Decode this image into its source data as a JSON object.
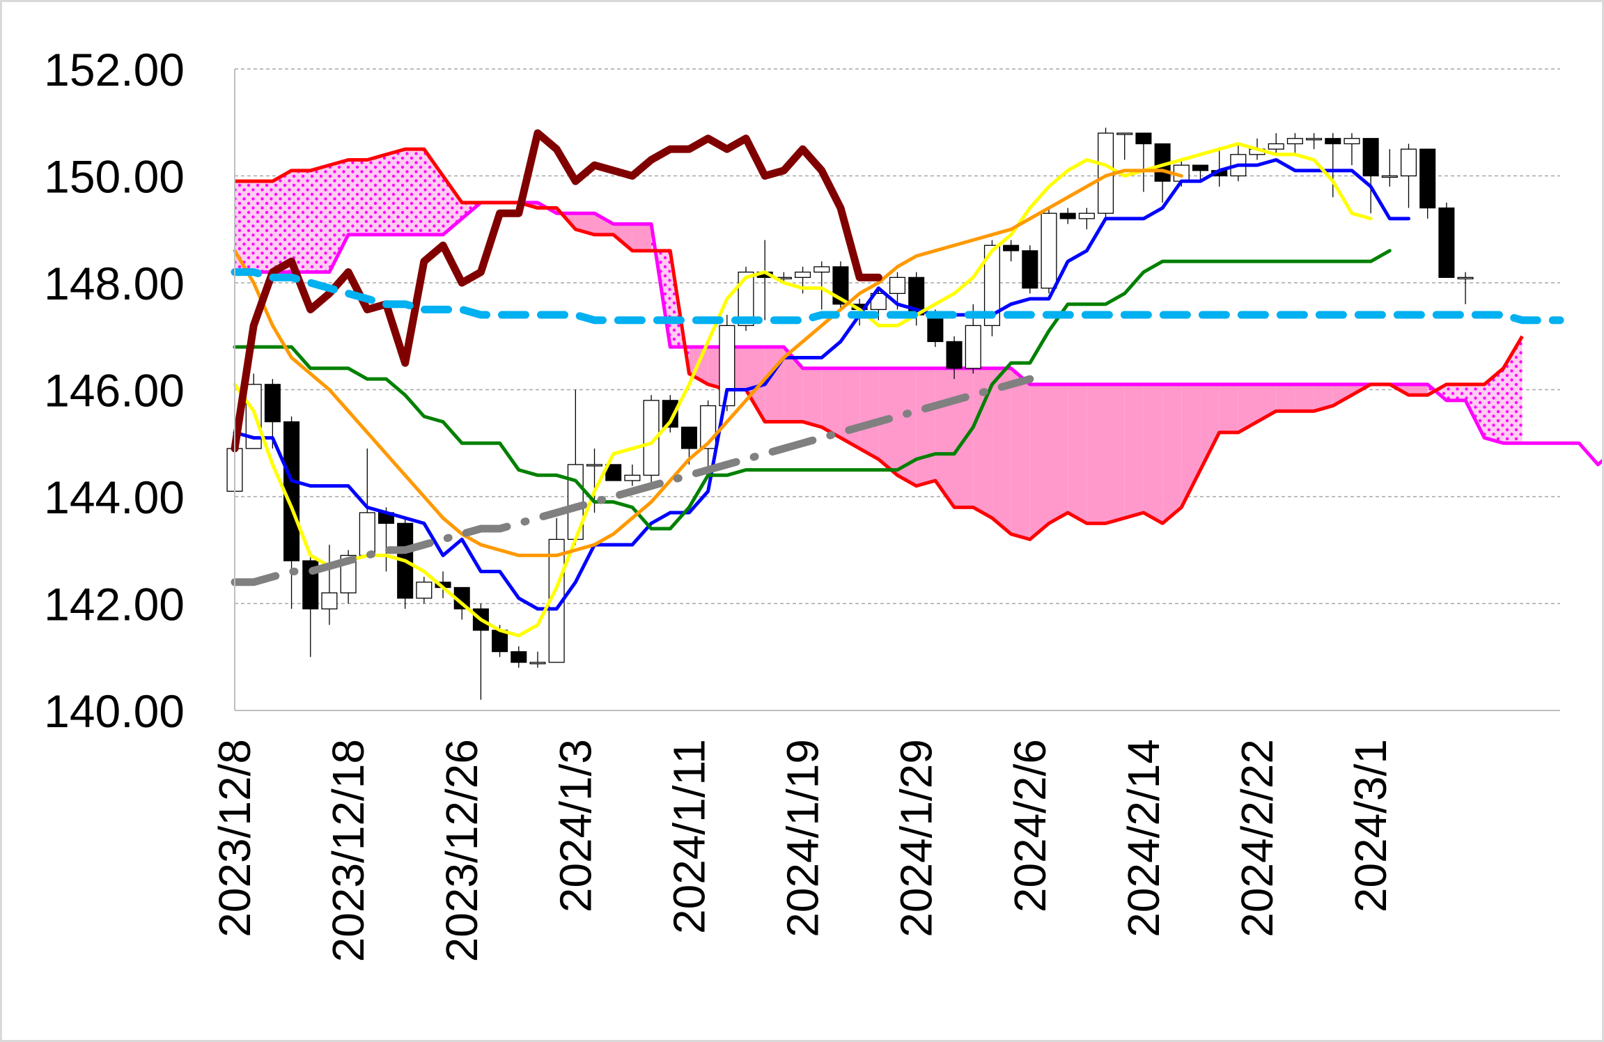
{
  "chart_data": {
    "type": "line",
    "title": "",
    "xlabel": "",
    "ylabel": "",
    "ylim": [
      140,
      152
    ],
    "yticks": [
      "140.00",
      "142.00",
      "144.00",
      "146.00",
      "148.00",
      "150.00",
      "152.00"
    ],
    "ytick_values": [
      140,
      142,
      144,
      146,
      148,
      150,
      152
    ],
    "xtick_labels": [
      "2023/12/8",
      "2023/12/18",
      "2023/12/26",
      "2024/1/3",
      "2024/1/11",
      "2024/1/19",
      "2024/1/29",
      "2024/2/6",
      "2024/2/14",
      "2024/2/22",
      "2024/3/1"
    ],
    "xtick_index": [
      0,
      6,
      12,
      18,
      24,
      30,
      36,
      42,
      48,
      54,
      60
    ],
    "grid": "horizontal dashed",
    "legend": "none",
    "x_count": 71,
    "candles": {
      "up_color": "#ffffff",
      "down_color": "#000000",
      "open": [
        144.1,
        144.9,
        146.1,
        145.4,
        142.8,
        141.9,
        142.2,
        142.9,
        143.7,
        143.5,
        142.1,
        142.4,
        142.3,
        141.9,
        141.5,
        141.1,
        140.9,
        140.9,
        143.2,
        144.6,
        144.6,
        144.3,
        144.4,
        145.8,
        145.3,
        144.9,
        145.7,
        147.2,
        148.2,
        148.1,
        148.1,
        148.2,
        148.3,
        147.6,
        147.5,
        147.8,
        148.1,
        147.4,
        146.9,
        146.4,
        147.2,
        148.7,
        148.6,
        147.9,
        149.3,
        149.2,
        149.3,
        150.8,
        150.8,
        150.6,
        149.9,
        150.2,
        150.1,
        150.0,
        150.4,
        150.5,
        150.6,
        150.7,
        150.7,
        150.6,
        150.7,
        150.0,
        150.0,
        150.5,
        149.4,
        148.1
      ],
      "close": [
        144.9,
        146.1,
        145.4,
        142.8,
        141.9,
        142.2,
        142.9,
        143.7,
        143.5,
        142.1,
        142.4,
        142.3,
        141.9,
        141.5,
        141.1,
        140.9,
        140.9,
        143.2,
        144.6,
        144.6,
        144.3,
        144.4,
        145.8,
        145.3,
        144.9,
        145.7,
        147.2,
        148.2,
        148.1,
        148.1,
        148.2,
        148.3,
        147.6,
        147.5,
        147.8,
        148.1,
        147.4,
        146.9,
        146.4,
        147.2,
        148.7,
        148.6,
        147.9,
        149.3,
        149.2,
        149.3,
        150.8,
        150.8,
        150.6,
        149.9,
        150.2,
        150.1,
        150.0,
        150.4,
        150.5,
        150.6,
        150.7,
        150.7,
        150.6,
        150.7,
        150.0,
        150.0,
        150.5,
        149.4,
        148.1,
        148.1
      ],
      "high": [
        145.0,
        146.3,
        146.2,
        145.5,
        142.9,
        143.1,
        143.0,
        144.9,
        143.8,
        143.6,
        142.5,
        142.6,
        142.3,
        142.0,
        141.6,
        141.2,
        141.1,
        143.6,
        146.0,
        144.9,
        144.6,
        144.6,
        145.9,
        145.9,
        145.3,
        145.8,
        147.4,
        148.3,
        148.8,
        148.2,
        148.3,
        148.4,
        148.4,
        147.7,
        147.9,
        148.2,
        148.2,
        147.5,
        147.0,
        147.6,
        148.8,
        148.8,
        148.7,
        149.4,
        149.4,
        149.4,
        150.9,
        150.8,
        150.7,
        150.2,
        150.3,
        150.2,
        150.5,
        150.6,
        150.7,
        150.8,
        150.8,
        150.8,
        150.8,
        150.8,
        150.6,
        150.5,
        150.6,
        150.5,
        149.5,
        148.2
      ],
      "low": [
        142.4,
        144.9,
        144.9,
        141.9,
        141.0,
        141.6,
        142.0,
        142.9,
        142.6,
        141.9,
        142.0,
        142.1,
        141.7,
        140.2,
        141.0,
        140.8,
        140.8,
        141.3,
        143.1,
        143.7,
        144.3,
        144.2,
        144.2,
        145.2,
        144.6,
        144.5,
        145.6,
        147.1,
        147.3,
        148.0,
        147.8,
        147.5,
        147.5,
        147.2,
        147.3,
        147.5,
        147.2,
        146.8,
        146.2,
        146.3,
        147.0,
        148.4,
        147.8,
        147.8,
        149.1,
        149.0,
        149.2,
        150.3,
        149.7,
        149.5,
        149.8,
        149.9,
        149.8,
        149.9,
        150.3,
        150.4,
        150.4,
        150.5,
        149.6,
        150.2,
        149.3,
        149.8,
        149.4,
        149.2,
        148.1,
        147.6
      ]
    },
    "series": [
      {
        "color": "#0000ff",
        "width": 5,
        "dash": "",
        "x_start": 0,
        "values": [
          145.2,
          145.1,
          145.1,
          144.3,
          144.2,
          144.2,
          144.2,
          143.8,
          143.7,
          143.6,
          143.5,
          142.9,
          143.2,
          142.6,
          142.6,
          142.1,
          141.9,
          141.9,
          142.4,
          143.1,
          143.1,
          143.1,
          143.5,
          143.7,
          143.7,
          144.1,
          146.0,
          146.0,
          146.1,
          146.6,
          146.6,
          146.6,
          146.9,
          147.4,
          147.9,
          147.6,
          147.5,
          147.4,
          147.4,
          147.4,
          147.4,
          147.6,
          147.7,
          147.7,
          148.4,
          148.6,
          149.2,
          149.2,
          149.2,
          149.4,
          149.9,
          149.9,
          150.1,
          150.2,
          150.2,
          150.3,
          150.1,
          150.1,
          150.1,
          150.1,
          149.8,
          149.2,
          149.2
        ]
      },
      {
        "color": "#ffff00",
        "width": 5,
        "dash": "",
        "x_start": 0,
        "values": [
          146.1,
          145.6,
          144.6,
          143.8,
          142.9,
          142.7,
          142.8,
          142.9,
          142.9,
          142.8,
          142.6,
          142.3,
          142.0,
          141.7,
          141.5,
          141.4,
          141.6,
          142.3,
          143.2,
          144.1,
          144.8,
          144.9,
          145.0,
          145.4,
          146.1,
          146.9,
          147.7,
          148.1,
          148.2,
          148.0,
          147.9,
          147.9,
          147.7,
          147.5,
          147.2,
          147.2,
          147.4,
          147.6,
          147.8,
          148.1,
          148.6,
          148.9,
          149.4,
          149.8,
          150.1,
          150.3,
          150.2,
          150.0,
          150.1,
          150.2,
          150.3,
          150.4,
          150.5,
          150.6,
          150.5,
          150.4,
          150.4,
          150.3,
          149.9,
          149.3,
          149.2
        ]
      },
      {
        "color": "#008000",
        "width": 5,
        "dash": "",
        "x_start": 0,
        "values": [
          146.8,
          146.8,
          146.8,
          146.8,
          146.4,
          146.4,
          146.4,
          146.2,
          146.2,
          145.9,
          145.5,
          145.4,
          145.0,
          145.0,
          145.0,
          144.5,
          144.4,
          144.4,
          144.3,
          143.9,
          143.9,
          143.8,
          143.4,
          143.4,
          143.8,
          144.4,
          144.4,
          144.5,
          144.5,
          144.5,
          144.5,
          144.5,
          144.5,
          144.5,
          144.5,
          144.5,
          144.7,
          144.8,
          144.8,
          145.3,
          146.1,
          146.5,
          146.5,
          147.1,
          147.6,
          147.6,
          147.6,
          147.8,
          148.2,
          148.4,
          148.4,
          148.4,
          148.4,
          148.4,
          148.4,
          148.4,
          148.4,
          148.4,
          148.4,
          148.4,
          148.4,
          148.6
        ]
      },
      {
        "color": "#ff9900",
        "width": 5,
        "dash": "",
        "x_start": 0,
        "values": [
          148.6,
          148.0,
          147.2,
          146.6,
          146.3,
          146.0,
          145.6,
          145.2,
          144.8,
          144.4,
          144.0,
          143.6,
          143.3,
          143.1,
          143.0,
          142.9,
          142.9,
          142.9,
          143.0,
          143.1,
          143.3,
          143.6,
          143.9,
          144.3,
          144.7,
          145.0,
          145.4,
          145.8,
          146.2,
          146.6,
          146.9,
          147.2,
          147.5,
          147.8,
          148.0,
          148.3,
          148.5,
          148.6,
          148.7,
          148.8,
          148.9,
          149.0,
          149.2,
          149.4,
          149.6,
          149.8,
          150.0,
          150.1,
          150.1,
          150.1,
          150.0
        ]
      },
      {
        "color": "#800000",
        "width": 11,
        "dash": "",
        "x_start": 0,
        "values": [
          144.9,
          147.2,
          148.2,
          148.4,
          147.5,
          147.8,
          148.2,
          147.5,
          147.6,
          146.5,
          148.4,
          148.7,
          148.0,
          148.2,
          149.3,
          149.3,
          150.8,
          150.5,
          149.9,
          150.2,
          150.1,
          150.0,
          150.3,
          150.5,
          150.5,
          150.7,
          150.5,
          150.7,
          150.0,
          150.1,
          150.5,
          150.1,
          149.4,
          148.1,
          148.1
        ]
      },
      {
        "color": "#00b0f0",
        "width": 11,
        "dash": "34,22",
        "x_start": 0,
        "values": [
          148.2,
          148.2,
          148.1,
          148.1,
          148.0,
          147.9,
          147.8,
          147.7,
          147.6,
          147.6,
          147.5,
          147.5,
          147.5,
          147.4,
          147.4,
          147.4,
          147.4,
          147.4,
          147.4,
          147.3,
          147.3,
          147.3,
          147.3,
          147.3,
          147.3,
          147.3,
          147.3,
          147.3,
          147.3,
          147.3,
          147.3,
          147.4,
          147.4,
          147.4,
          147.4,
          147.4,
          147.4,
          147.4,
          147.4,
          147.4,
          147.4,
          147.4,
          147.4,
          147.4,
          147.4,
          147.4,
          147.4,
          147.4,
          147.4,
          147.4,
          147.4,
          147.4,
          147.4,
          147.4,
          147.4,
          147.4,
          147.4,
          147.4,
          147.4,
          147.4,
          147.4,
          147.4,
          147.4,
          147.4,
          147.4,
          147.4,
          147.4,
          147.4,
          147.3,
          147.3,
          147.3
        ]
      },
      {
        "color": "#808080",
        "width": 11,
        "dash": "60,26,2,26",
        "x_start": 0,
        "values": [
          142.4,
          142.4,
          142.5,
          142.6,
          142.6,
          142.7,
          142.8,
          142.9,
          143.0,
          143.0,
          143.1,
          143.2,
          143.3,
          143.4,
          143.4,
          143.5,
          143.6,
          143.7,
          143.8,
          143.9,
          144.0,
          144.1,
          144.2,
          144.3,
          144.4,
          144.5,
          144.6,
          144.7,
          144.8,
          144.9,
          145.0,
          145.1,
          145.2,
          145.3,
          145.4,
          145.5,
          145.6,
          145.7,
          145.8,
          145.9,
          146.0,
          146.1,
          146.2
        ]
      }
    ],
    "cloud": {
      "x_start": 0,
      "span_a": {
        "color": "#ff00ff",
        "values": [
          148.2,
          148.2,
          148.2,
          148.2,
          148.2,
          148.2,
          148.9,
          148.9,
          148.9,
          148.9,
          148.9,
          148.9,
          149.2,
          149.5,
          149.5,
          149.5,
          149.5,
          149.3,
          149.3,
          149.3,
          149.1,
          149.1,
          149.1,
          146.8,
          146.8,
          146.8,
          146.8,
          146.8,
          146.8,
          146.8,
          146.4,
          146.4,
          146.4,
          146.4,
          146.4,
          146.4,
          146.4,
          146.4,
          146.4,
          146.4,
          146.4,
          146.4,
          146.1,
          146.1,
          146.1,
          146.1,
          146.1,
          146.1,
          146.1,
          146.1,
          146.1,
          146.1,
          146.1,
          146.1,
          146.1,
          146.1,
          146.1,
          146.1,
          146.1,
          146.1,
          146.1,
          146.1,
          146.1,
          146.1,
          145.8,
          145.8,
          145.1,
          145.0,
          145.0,
          145.0,
          145.0,
          145.0,
          144.6,
          144.9
        ]
      },
      "span_b": {
        "color": "#ff0000",
        "values": [
          149.9,
          149.9,
          149.9,
          150.1,
          150.1,
          150.2,
          150.3,
          150.3,
          150.4,
          150.5,
          150.5,
          150.0,
          149.5,
          149.5,
          149.5,
          149.5,
          149.4,
          149.4,
          149.0,
          148.9,
          148.9,
          148.6,
          148.6,
          148.6,
          146.3,
          146.1,
          146.0,
          146.0,
          145.4,
          145.4,
          145.4,
          145.3,
          145.1,
          144.9,
          144.7,
          144.4,
          144.2,
          144.3,
          143.8,
          143.8,
          143.6,
          143.3,
          143.2,
          143.5,
          143.7,
          143.5,
          143.5,
          143.6,
          143.7,
          143.5,
          143.8,
          144.5,
          145.2,
          145.2,
          145.4,
          145.6,
          145.6,
          145.6,
          145.7,
          145.9,
          146.1,
          146.1,
          145.9,
          145.9,
          146.1,
          146.1,
          146.1,
          146.4,
          147.0
        ]
      },
      "fill_up": "#ff99cc",
      "fill_down": "#ffccf2",
      "dot_color": "#ff00ff"
    }
  }
}
